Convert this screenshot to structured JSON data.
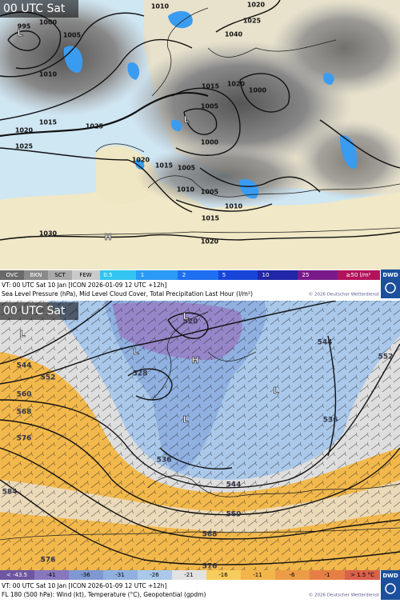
{
  "panels": [
    {
      "time_label": "00 UTC Sat",
      "map_labels": [
        "995",
        "1000",
        "1005",
        "1010",
        "1015",
        "1020",
        "1025",
        "1025",
        "1020",
        "1015",
        "1005",
        "1010",
        "1005",
        "1010",
        "1015",
        "1020",
        "1030",
        "1015",
        "1020",
        "1000",
        "1005",
        "1000",
        "1040",
        "1020",
        "1025",
        "1010",
        "L",
        "L",
        "H"
      ],
      "legend": [
        "OVC",
        "BKN",
        "SCT",
        "FEW",
        "0.5",
        "1",
        "2",
        "5",
        "10",
        "25",
        "≥50 l/m²"
      ],
      "valid_time": "VT: 00 UTC Sat  10 Jan [ICON 2026-01-09 12 UTC +12h]",
      "description": "Sea Level Pressure (hPa), Mid Level Cloud Cover, Total Precipitation Last Hour (l/m²)",
      "copyright": "© 2026 Deutscher Wetterdienst",
      "logo": "DWD"
    },
    {
      "time_label": "00 UTC Sat",
      "map_labels": [
        "544",
        "552",
        "560",
        "568",
        "576",
        "584",
        "576",
        "528",
        "520",
        "536",
        "544",
        "560",
        "568",
        "576",
        "544",
        "536",
        "552",
        "L",
        "H",
        "L",
        "L",
        "L",
        "L"
      ],
      "legend": [
        "< -43.5",
        "-41",
        "-36",
        "-31",
        "-26",
        "-21",
        "-16",
        "-11",
        "-6",
        "-1",
        "> 1.5 °C"
      ],
      "valid_time": "VT: 00 UTC Sat  10 Jan [ICON 2026-01-09 12 UTC +12h]",
      "description": "FL 180 (500 hPa): Wind (kt), Temperature (°C), Geopotential (gpdm)",
      "copyright": "© 2026 Deutscher Wetterdienst",
      "logo": "DWD"
    }
  ]
}
